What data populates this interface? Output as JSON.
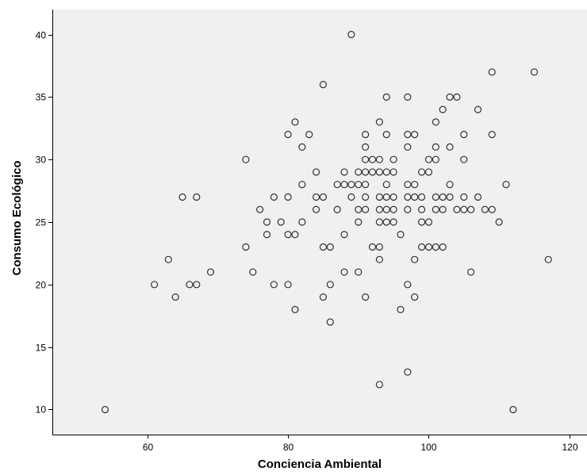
{
  "chart_data": {
    "type": "scatter",
    "title": "",
    "xlabel": "Conciencia Ambiental",
    "ylabel": "Consumo Ecológico",
    "xlim": [
      46.5,
      122.5
    ],
    "ylim": [
      8,
      42
    ],
    "xticks": [
      60,
      80,
      100,
      120
    ],
    "yticks": [
      10,
      15,
      20,
      25,
      30,
      35,
      40
    ],
    "grid": false,
    "colors": {
      "plot_bg": "#f0f0f0",
      "marker_edge": "#333333",
      "axis": "#000000"
    },
    "points": [
      [
        54,
        10
      ],
      [
        61,
        20
      ],
      [
        63,
        22
      ],
      [
        64,
        19
      ],
      [
        65,
        27
      ],
      [
        66,
        20
      ],
      [
        67,
        27
      ],
      [
        67,
        20
      ],
      [
        69,
        21
      ],
      [
        74,
        30
      ],
      [
        74,
        23
      ],
      [
        75,
        21
      ],
      [
        76,
        26
      ],
      [
        77,
        25
      ],
      [
        77,
        24
      ],
      [
        78,
        27
      ],
      [
        78,
        20
      ],
      [
        79,
        25
      ],
      [
        80,
        32
      ],
      [
        80,
        27
      ],
      [
        80,
        24
      ],
      [
        80,
        20
      ],
      [
        81,
        33
      ],
      [
        81,
        24
      ],
      [
        81,
        18
      ],
      [
        82,
        31
      ],
      [
        82,
        28
      ],
      [
        82,
        25
      ],
      [
        83,
        32
      ],
      [
        84,
        29
      ],
      [
        84,
        27
      ],
      [
        84,
        26
      ],
      [
        85,
        36
      ],
      [
        85,
        27
      ],
      [
        85,
        23
      ],
      [
        85,
        19
      ],
      [
        86,
        23
      ],
      [
        86,
        20
      ],
      [
        86,
        17
      ],
      [
        87,
        28
      ],
      [
        87,
        26
      ],
      [
        88,
        29
      ],
      [
        88,
        28
      ],
      [
        88,
        24
      ],
      [
        88,
        21
      ],
      [
        89,
        40
      ],
      [
        89,
        28
      ],
      [
        89,
        27
      ],
      [
        90,
        29
      ],
      [
        90,
        28
      ],
      [
        90,
        26
      ],
      [
        90,
        25
      ],
      [
        90,
        21
      ],
      [
        91,
        32
      ],
      [
        91,
        31
      ],
      [
        91,
        30
      ],
      [
        91,
        29
      ],
      [
        91,
        28
      ],
      [
        91,
        27
      ],
      [
        91,
        26
      ],
      [
        91,
        19
      ],
      [
        92,
        30
      ],
      [
        92,
        29
      ],
      [
        92,
        23
      ],
      [
        93,
        33
      ],
      [
        93,
        30
      ],
      [
        93,
        29
      ],
      [
        93,
        27
      ],
      [
        93,
        26
      ],
      [
        93,
        25
      ],
      [
        93,
        23
      ],
      [
        93,
        22
      ],
      [
        93,
        12
      ],
      [
        94,
        35
      ],
      [
        94,
        32
      ],
      [
        94,
        29
      ],
      [
        94,
        28
      ],
      [
        94,
        27
      ],
      [
        94,
        26
      ],
      [
        94,
        25
      ],
      [
        95,
        30
      ],
      [
        95,
        29
      ],
      [
        95,
        27
      ],
      [
        95,
        26
      ],
      [
        95,
        25
      ],
      [
        96,
        24
      ],
      [
        96,
        18
      ],
      [
        97,
        35
      ],
      [
        97,
        32
      ],
      [
        97,
        31
      ],
      [
        97,
        28
      ],
      [
        97,
        27
      ],
      [
        97,
        26
      ],
      [
        97,
        20
      ],
      [
        97,
        13
      ],
      [
        98,
        32
      ],
      [
        98,
        28
      ],
      [
        98,
        27
      ],
      [
        98,
        22
      ],
      [
        98,
        19
      ],
      [
        99,
        29
      ],
      [
        99,
        27
      ],
      [
        99,
        26
      ],
      [
        99,
        25
      ],
      [
        99,
        23
      ],
      [
        100,
        30
      ],
      [
        100,
        29
      ],
      [
        100,
        25
      ],
      [
        100,
        23
      ],
      [
        101,
        33
      ],
      [
        101,
        31
      ],
      [
        101,
        30
      ],
      [
        101,
        27
      ],
      [
        101,
        26
      ],
      [
        101,
        23
      ],
      [
        102,
        34
      ],
      [
        102,
        27
      ],
      [
        102,
        26
      ],
      [
        102,
        23
      ],
      [
        103,
        35
      ],
      [
        103,
        31
      ],
      [
        103,
        28
      ],
      [
        103,
        27
      ],
      [
        104,
        35
      ],
      [
        104,
        26
      ],
      [
        105,
        32
      ],
      [
        105,
        30
      ],
      [
        105,
        27
      ],
      [
        105,
        26
      ],
      [
        106,
        26
      ],
      [
        106,
        21
      ],
      [
        107,
        34
      ],
      [
        107,
        27
      ],
      [
        108,
        26
      ],
      [
        109,
        37
      ],
      [
        109,
        32
      ],
      [
        109,
        26
      ],
      [
        110,
        25
      ],
      [
        111,
        28
      ],
      [
        112,
        10
      ],
      [
        115,
        37
      ],
      [
        117,
        22
      ]
    ]
  }
}
